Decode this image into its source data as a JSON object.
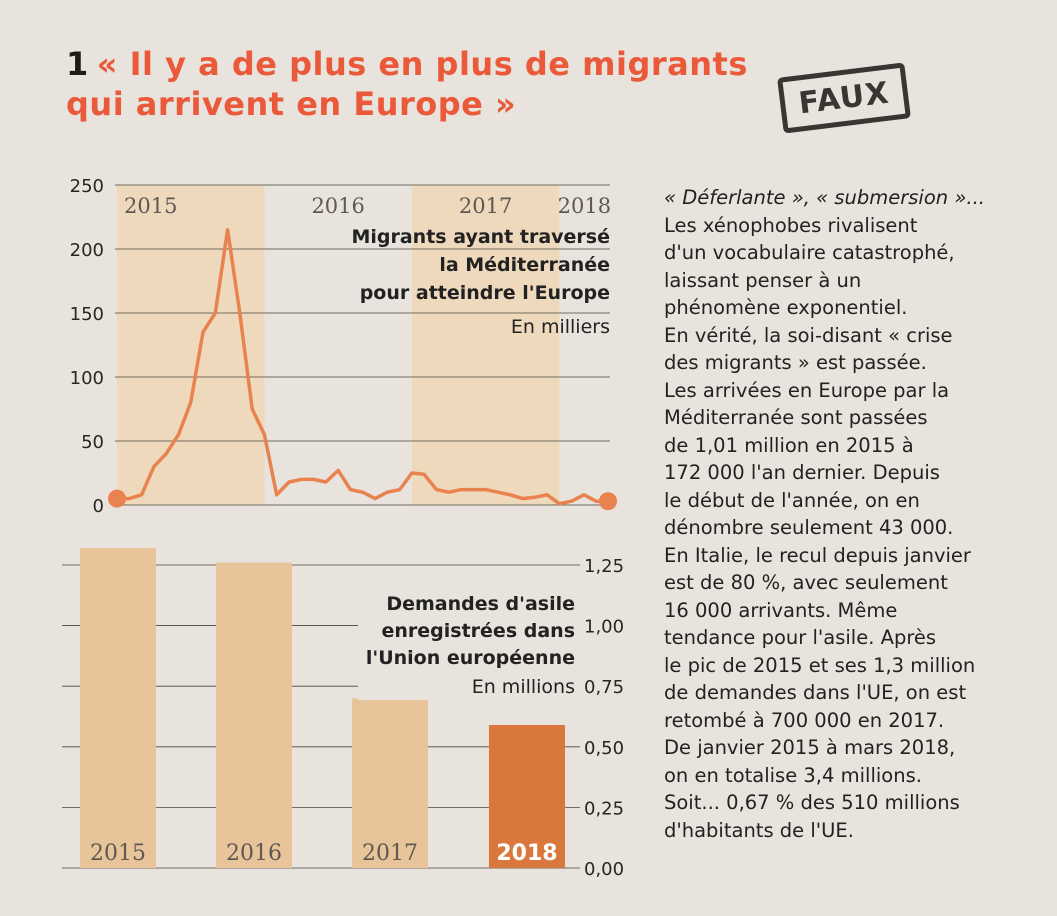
{
  "headline": {
    "number": "1",
    "line1": "« Il y a de plus en plus de migrants",
    "line2": "qui arrivent en Europe »"
  },
  "stamp": "FAUX",
  "colors": {
    "headline": "#ea5a3a",
    "line": "#e8824e",
    "bar": "#e8c49a",
    "bar_highlight": "#d9773c",
    "band": "#efd9bd"
  },
  "chart_data": [
    {
      "type": "line",
      "title": "Migrants ayant traversé la Méditerranée pour atteindre l'Europe",
      "title_lines": [
        "Migrants ayant traversé",
        "la Méditerranée",
        "pour atteindre l'Europe"
      ],
      "unit": "En milliers",
      "year_labels": [
        "2015",
        "2016",
        "2017",
        "2018"
      ],
      "y_ticks": [
        0,
        50,
        100,
        150,
        200,
        250
      ],
      "ylim": [
        0,
        250
      ],
      "x_domain": [
        2015.0,
        2018.33
      ],
      "grid": true,
      "series": [
        {
          "x": [
            2015.0,
            2015.083,
            2015.167,
            2015.25,
            2015.333,
            2015.417,
            2015.5,
            2015.583,
            2015.667,
            2015.75,
            2015.833,
            2015.917,
            2016.0,
            2016.083,
            2016.167,
            2016.25,
            2016.333,
            2016.417,
            2016.5,
            2016.583,
            2016.667,
            2016.75,
            2016.833,
            2016.917,
            2017.0,
            2017.083,
            2017.167,
            2017.25,
            2017.333,
            2017.417,
            2017.5,
            2017.583,
            2017.667,
            2017.75,
            2017.833,
            2017.917,
            2018.0,
            2018.083,
            2018.167,
            2018.25,
            2018.33
          ],
          "y": [
            5,
            5,
            8,
            30,
            40,
            55,
            80,
            135,
            150,
            215,
            150,
            75,
            55,
            8,
            18,
            20,
            20,
            18,
            27,
            12,
            10,
            5,
            10,
            12,
            25,
            24,
            12,
            10,
            12,
            12,
            12,
            10,
            8,
            5,
            6,
            8,
            1,
            3,
            8,
            3,
            3
          ]
        }
      ]
    },
    {
      "type": "bar",
      "title": "Demandes d'asile enregistrées dans l'Union européenne",
      "title_lines": [
        "Demandes d'asile",
        "enregistrées dans",
        "l'Union européenne"
      ],
      "unit": "En millions",
      "categories": [
        "2015",
        "2016",
        "2017",
        "2018"
      ],
      "values": [
        1.32,
        1.26,
        0.7,
        0.59
      ],
      "highlight": "2018",
      "y_ticks": [
        "0,00",
        "0,25",
        "0,50",
        "0,75",
        "1,00",
        "1,25"
      ],
      "ylim": [
        0,
        1.32
      ],
      "grid": true
    }
  ],
  "body_text": {
    "lines": [
      "« Déferlante », « submersion »...",
      "Les xénophobes rivalisent",
      "d'un vocabulaire catastrophé,",
      "laissant penser à un",
      "phénomène exponentiel.",
      "En vérité, la soi-disant « crise",
      "des migrants » est passée.",
      "Les arrivées en Europe par la",
      "Méditerranée sont passées",
      "de 1,01 million en 2015 à",
      "172 000 l'an dernier. Depuis",
      "le début de l'année, on en",
      "dénombre seulement 43 000.",
      "En Italie, le recul depuis janvier",
      "est de 80 %, avec seulement",
      "16 000 arrivants. Même",
      "tendance pour l'asile. Après",
      "le pic de 2015 et ses 1,3 million",
      "de demandes dans l'UE, on est",
      "retombé à 700 000 en 2017.",
      "De janvier 2015 à mars 2018,",
      "on en totalise 3,4 millions.",
      "Soit... 0,67 % des 510 millions",
      "d'habitants de l'UE."
    ]
  }
}
